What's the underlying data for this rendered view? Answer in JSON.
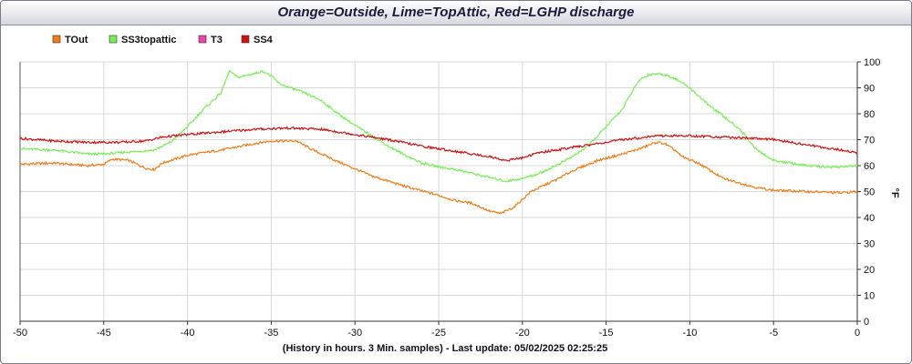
{
  "title": "Orange=Outside,  Lime=TopAttic, Red=LGHP discharge",
  "caption": "(History in hours. 3 Min. samples) - Last update: 05/02/2025 02:25:25",
  "chart_data": {
    "type": "line",
    "xlabel": "",
    "ylabel": "°F",
    "xlim": [
      -50,
      0
    ],
    "ylim": [
      0,
      100
    ],
    "grid": true,
    "legend_position": "top-left",
    "x_ticks": [
      "-50",
      "-45",
      "-40",
      "-35",
      "-30",
      "-25",
      "-20",
      "-15",
      "-10",
      "-5",
      "0"
    ],
    "y_ticks": [
      "0",
      "10",
      "20",
      "30",
      "40",
      "50",
      "60",
      "70",
      "80",
      "90",
      "100"
    ],
    "series": [
      {
        "name": "TOut",
        "color": "#ee7d19",
        "points": [
          [
            -50,
            60.5
          ],
          [
            -48,
            61
          ],
          [
            -46,
            60
          ],
          [
            -45,
            60.5
          ],
          [
            -44.5,
            62.5
          ],
          [
            -43.5,
            62
          ],
          [
            -42.5,
            59
          ],
          [
            -42,
            58.5
          ],
          [
            -41.5,
            61
          ],
          [
            -40,
            64
          ],
          [
            -38,
            66
          ],
          [
            -36,
            68.5
          ],
          [
            -35,
            69.5
          ],
          [
            -34.5,
            69.5
          ],
          [
            -33.5,
            69.5
          ],
          [
            -32.5,
            66
          ],
          [
            -31,
            61.5
          ],
          [
            -29,
            56
          ],
          [
            -27,
            52
          ],
          [
            -25,
            48.5
          ],
          [
            -24,
            46.5
          ],
          [
            -23,
            45.5
          ],
          [
            -22,
            42.5
          ],
          [
            -21.3,
            41.5
          ],
          [
            -20.5,
            44
          ],
          [
            -19.5,
            50
          ],
          [
            -18,
            54.5
          ],
          [
            -17,
            58
          ],
          [
            -15.5,
            62
          ],
          [
            -14,
            64.5
          ],
          [
            -13,
            66.5
          ],
          [
            -12,
            69
          ],
          [
            -11.5,
            68.5
          ],
          [
            -10.8,
            65.5
          ],
          [
            -10.5,
            63.5
          ],
          [
            -9.5,
            61
          ],
          [
            -8,
            55
          ],
          [
            -6,
            51.5
          ],
          [
            -5,
            50.5
          ],
          [
            -3,
            50
          ],
          [
            -1,
            49.5
          ],
          [
            0,
            50
          ]
        ]
      },
      {
        "name": "SS3topattic",
        "color": "#77ee55",
        "points": [
          [
            -50,
            66.5
          ],
          [
            -48,
            66
          ],
          [
            -46,
            64.5
          ],
          [
            -45,
            64.5
          ],
          [
            -43,
            65.5
          ],
          [
            -42,
            66
          ],
          [
            -41,
            69
          ],
          [
            -40,
            75
          ],
          [
            -39,
            82
          ],
          [
            -38,
            88
          ],
          [
            -37.5,
            96.5
          ],
          [
            -37,
            94
          ],
          [
            -36,
            95.5
          ],
          [
            -35.5,
            96.5
          ],
          [
            -35,
            94.5
          ],
          [
            -34.5,
            91.5
          ],
          [
            -33,
            88
          ],
          [
            -32,
            85
          ],
          [
            -31,
            80
          ],
          [
            -30,
            75.5
          ],
          [
            -29,
            71.5
          ],
          [
            -28,
            67.5
          ],
          [
            -27,
            64
          ],
          [
            -26,
            61
          ],
          [
            -25,
            59.5
          ],
          [
            -24,
            58.5
          ],
          [
            -23,
            57
          ],
          [
            -22,
            55.5
          ],
          [
            -21,
            54
          ],
          [
            -20,
            55
          ],
          [
            -19,
            57
          ],
          [
            -18,
            60
          ],
          [
            -17,
            63.5
          ],
          [
            -16,
            68
          ],
          [
            -15,
            75
          ],
          [
            -14,
            82
          ],
          [
            -13.5,
            88
          ],
          [
            -13,
            93
          ],
          [
            -12.5,
            95
          ],
          [
            -12,
            95.5
          ],
          [
            -11.5,
            95
          ],
          [
            -11,
            94
          ],
          [
            -10,
            90
          ],
          [
            -9,
            84
          ],
          [
            -8,
            79
          ],
          [
            -7,
            74
          ],
          [
            -6,
            66
          ],
          [
            -5,
            62
          ],
          [
            -4,
            61
          ],
          [
            -3,
            60
          ],
          [
            -2,
            59.5
          ],
          [
            -1,
            59.5
          ],
          [
            0,
            60
          ]
        ]
      },
      {
        "name": "T3",
        "color": "#ee44aa",
        "points": []
      },
      {
        "name": "SS4",
        "color": "#cc1111",
        "points": [
          [
            -50,
            70.5
          ],
          [
            -48,
            69.5
          ],
          [
            -46,
            69
          ],
          [
            -44,
            69
          ],
          [
            -42.5,
            69.5
          ],
          [
            -41.5,
            71
          ],
          [
            -40,
            72
          ],
          [
            -38,
            73
          ],
          [
            -36,
            74
          ],
          [
            -34,
            74.5
          ],
          [
            -32,
            74
          ],
          [
            -30,
            72
          ],
          [
            -28,
            70
          ],
          [
            -26,
            67.5
          ],
          [
            -24,
            65.5
          ],
          [
            -22,
            63.5
          ],
          [
            -21,
            62
          ],
          [
            -20,
            63
          ],
          [
            -19,
            65
          ],
          [
            -18,
            66
          ],
          [
            -17,
            67
          ],
          [
            -16,
            68
          ],
          [
            -14,
            70
          ],
          [
            -12,
            71.5
          ],
          [
            -10,
            71.5
          ],
          [
            -8,
            71
          ],
          [
            -6,
            70.5
          ],
          [
            -5,
            70
          ],
          [
            -3,
            68
          ],
          [
            -1,
            66
          ],
          [
            0,
            65
          ]
        ]
      }
    ]
  }
}
